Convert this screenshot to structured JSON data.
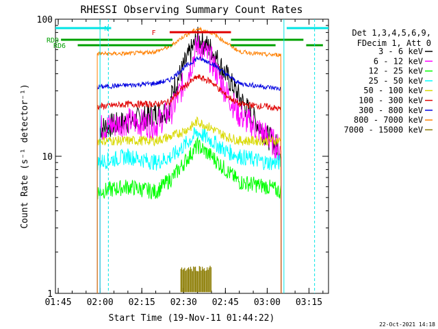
{
  "chart_data": {
    "type": "line",
    "title": "RHESSI Observing Summary Count Rates",
    "xlabel": "Start Time (19-Nov-11 01:44:22)",
    "ylabel": "Count Rate (s⁻¹ detector⁻¹)",
    "yscale": "log",
    "ylim": [
      1,
      100
    ],
    "xlim": [
      "01:44",
      "03:22"
    ],
    "x_ticks": [
      "01:45",
      "02:00",
      "02:15",
      "02:30",
      "02:45",
      "03:00",
      "03:15"
    ],
    "y_ticks": [
      "1",
      "10",
      "100"
    ],
    "legend_header": [
      "Det 1,3,4,5,6,9,",
      "FDecim 1, Att 0"
    ],
    "legend_position": "right",
    "footer_date": "22-Oct-2021 14:18",
    "flags": [
      {
        "label": "N",
        "color": "#00e5e5",
        "segments": [
          [
            "01:44",
            "02:04"
          ],
          [
            "03:07",
            "03:22"
          ]
        ]
      },
      {
        "label": "F",
        "color": "#e00000",
        "segments": [
          [
            "02:25",
            "02:47"
          ]
        ]
      },
      {
        "label": "RD0",
        "color": "#00a000",
        "segments": [
          [
            "01:46",
            "02:26"
          ],
          [
            "02:47",
            "03:13"
          ]
        ]
      },
      {
        "label": "RD6",
        "color": "#00a000",
        "segments": [
          [
            "01:52",
            "02:26"
          ],
          [
            "02:47",
            "03:03"
          ],
          [
            "03:14",
            "03:20"
          ]
        ]
      }
    ],
    "series": [
      {
        "name": "3 - 6 keV",
        "color": "#000000",
        "x": [
          "02:00",
          "02:15",
          "02:25",
          "02:26",
          "02:32",
          "02:35",
          "02:40",
          "02:45",
          "02:50",
          "02:55",
          "03:00",
          "03:05"
        ],
        "values": [
          16,
          19,
          22,
          30,
          55,
          72,
          60,
          40,
          27,
          19,
          14,
          11
        ]
      },
      {
        "name": "6 - 12 keV",
        "color": "#ff00ff",
        "x": [
          "02:00",
          "02:10",
          "02:20",
          "02:26",
          "02:32",
          "02:35",
          "02:40",
          "02:45",
          "02:50",
          "03:00",
          "03:05"
        ],
        "values": [
          16,
          18,
          17,
          22,
          42,
          65,
          50,
          30,
          20,
          14,
          11
        ]
      },
      {
        "name": "12 - 25 keV",
        "color": "#00ff00",
        "x": [
          "01:59",
          "02:10",
          "02:20",
          "02:26",
          "02:32",
          "02:35",
          "02:40",
          "02:45",
          "02:50",
          "03:00",
          "03:05"
        ],
        "values": [
          5.5,
          6,
          5.5,
          7,
          10,
          12,
          10,
          8,
          6.5,
          6,
          5.5
        ]
      },
      {
        "name": "25 - 50 keV",
        "color": "#00ffff",
        "x": [
          "01:59",
          "02:10",
          "02:20",
          "02:26",
          "02:32",
          "02:35",
          "02:40",
          "02:45",
          "02:50",
          "03:00",
          "03:05"
        ],
        "values": [
          9,
          10,
          9,
          10,
          13,
          15,
          13,
          11,
          10,
          9,
          9
        ]
      },
      {
        "name": "50 - 100 keV",
        "color": "#d9d900",
        "x": [
          "01:59",
          "02:10",
          "02:20",
          "02:26",
          "02:32",
          "02:35",
          "02:40",
          "02:45",
          "02:50",
          "03:00",
          "03:05"
        ],
        "values": [
          13,
          13,
          13,
          14,
          16,
          18,
          16,
          14,
          13,
          13,
          13
        ]
      },
      {
        "name": "100 - 300 keV",
        "color": "#e00000",
        "x": [
          "01:59",
          "02:10",
          "02:20",
          "02:25",
          "02:30",
          "02:35",
          "02:40",
          "02:45",
          "02:50",
          "03:00",
          "03:05"
        ],
        "values": [
          23,
          24,
          24,
          25,
          32,
          38,
          35,
          28,
          24,
          23,
          22
        ]
      },
      {
        "name": "300 - 800 keV",
        "color": "#0000e0",
        "x": [
          "01:59",
          "02:10",
          "02:20",
          "02:25",
          "02:30",
          "02:35",
          "02:40",
          "02:45",
          "02:50",
          "03:00",
          "03:05"
        ],
        "values": [
          32,
          33,
          34,
          36,
          44,
          52,
          48,
          40,
          34,
          32,
          31
        ]
      },
      {
        "name": "800 - 7000 keV",
        "color": "#ff8000",
        "x": [
          "01:59",
          "02:10",
          "02:20",
          "02:25",
          "02:30",
          "02:35",
          "02:40",
          "02:45",
          "02:50",
          "03:00",
          "03:05"
        ],
        "values": [
          56,
          56,
          58,
          63,
          75,
          85,
          80,
          68,
          58,
          55,
          55
        ]
      },
      {
        "name": "7000 - 15000 keV",
        "color": "#8b7b00",
        "x": [
          "02:29",
          "02:32",
          "02:35",
          "02:38",
          "02:40"
        ],
        "values": [
          1.3,
          1.4,
          1.4,
          1.3,
          1.2
        ]
      }
    ]
  }
}
